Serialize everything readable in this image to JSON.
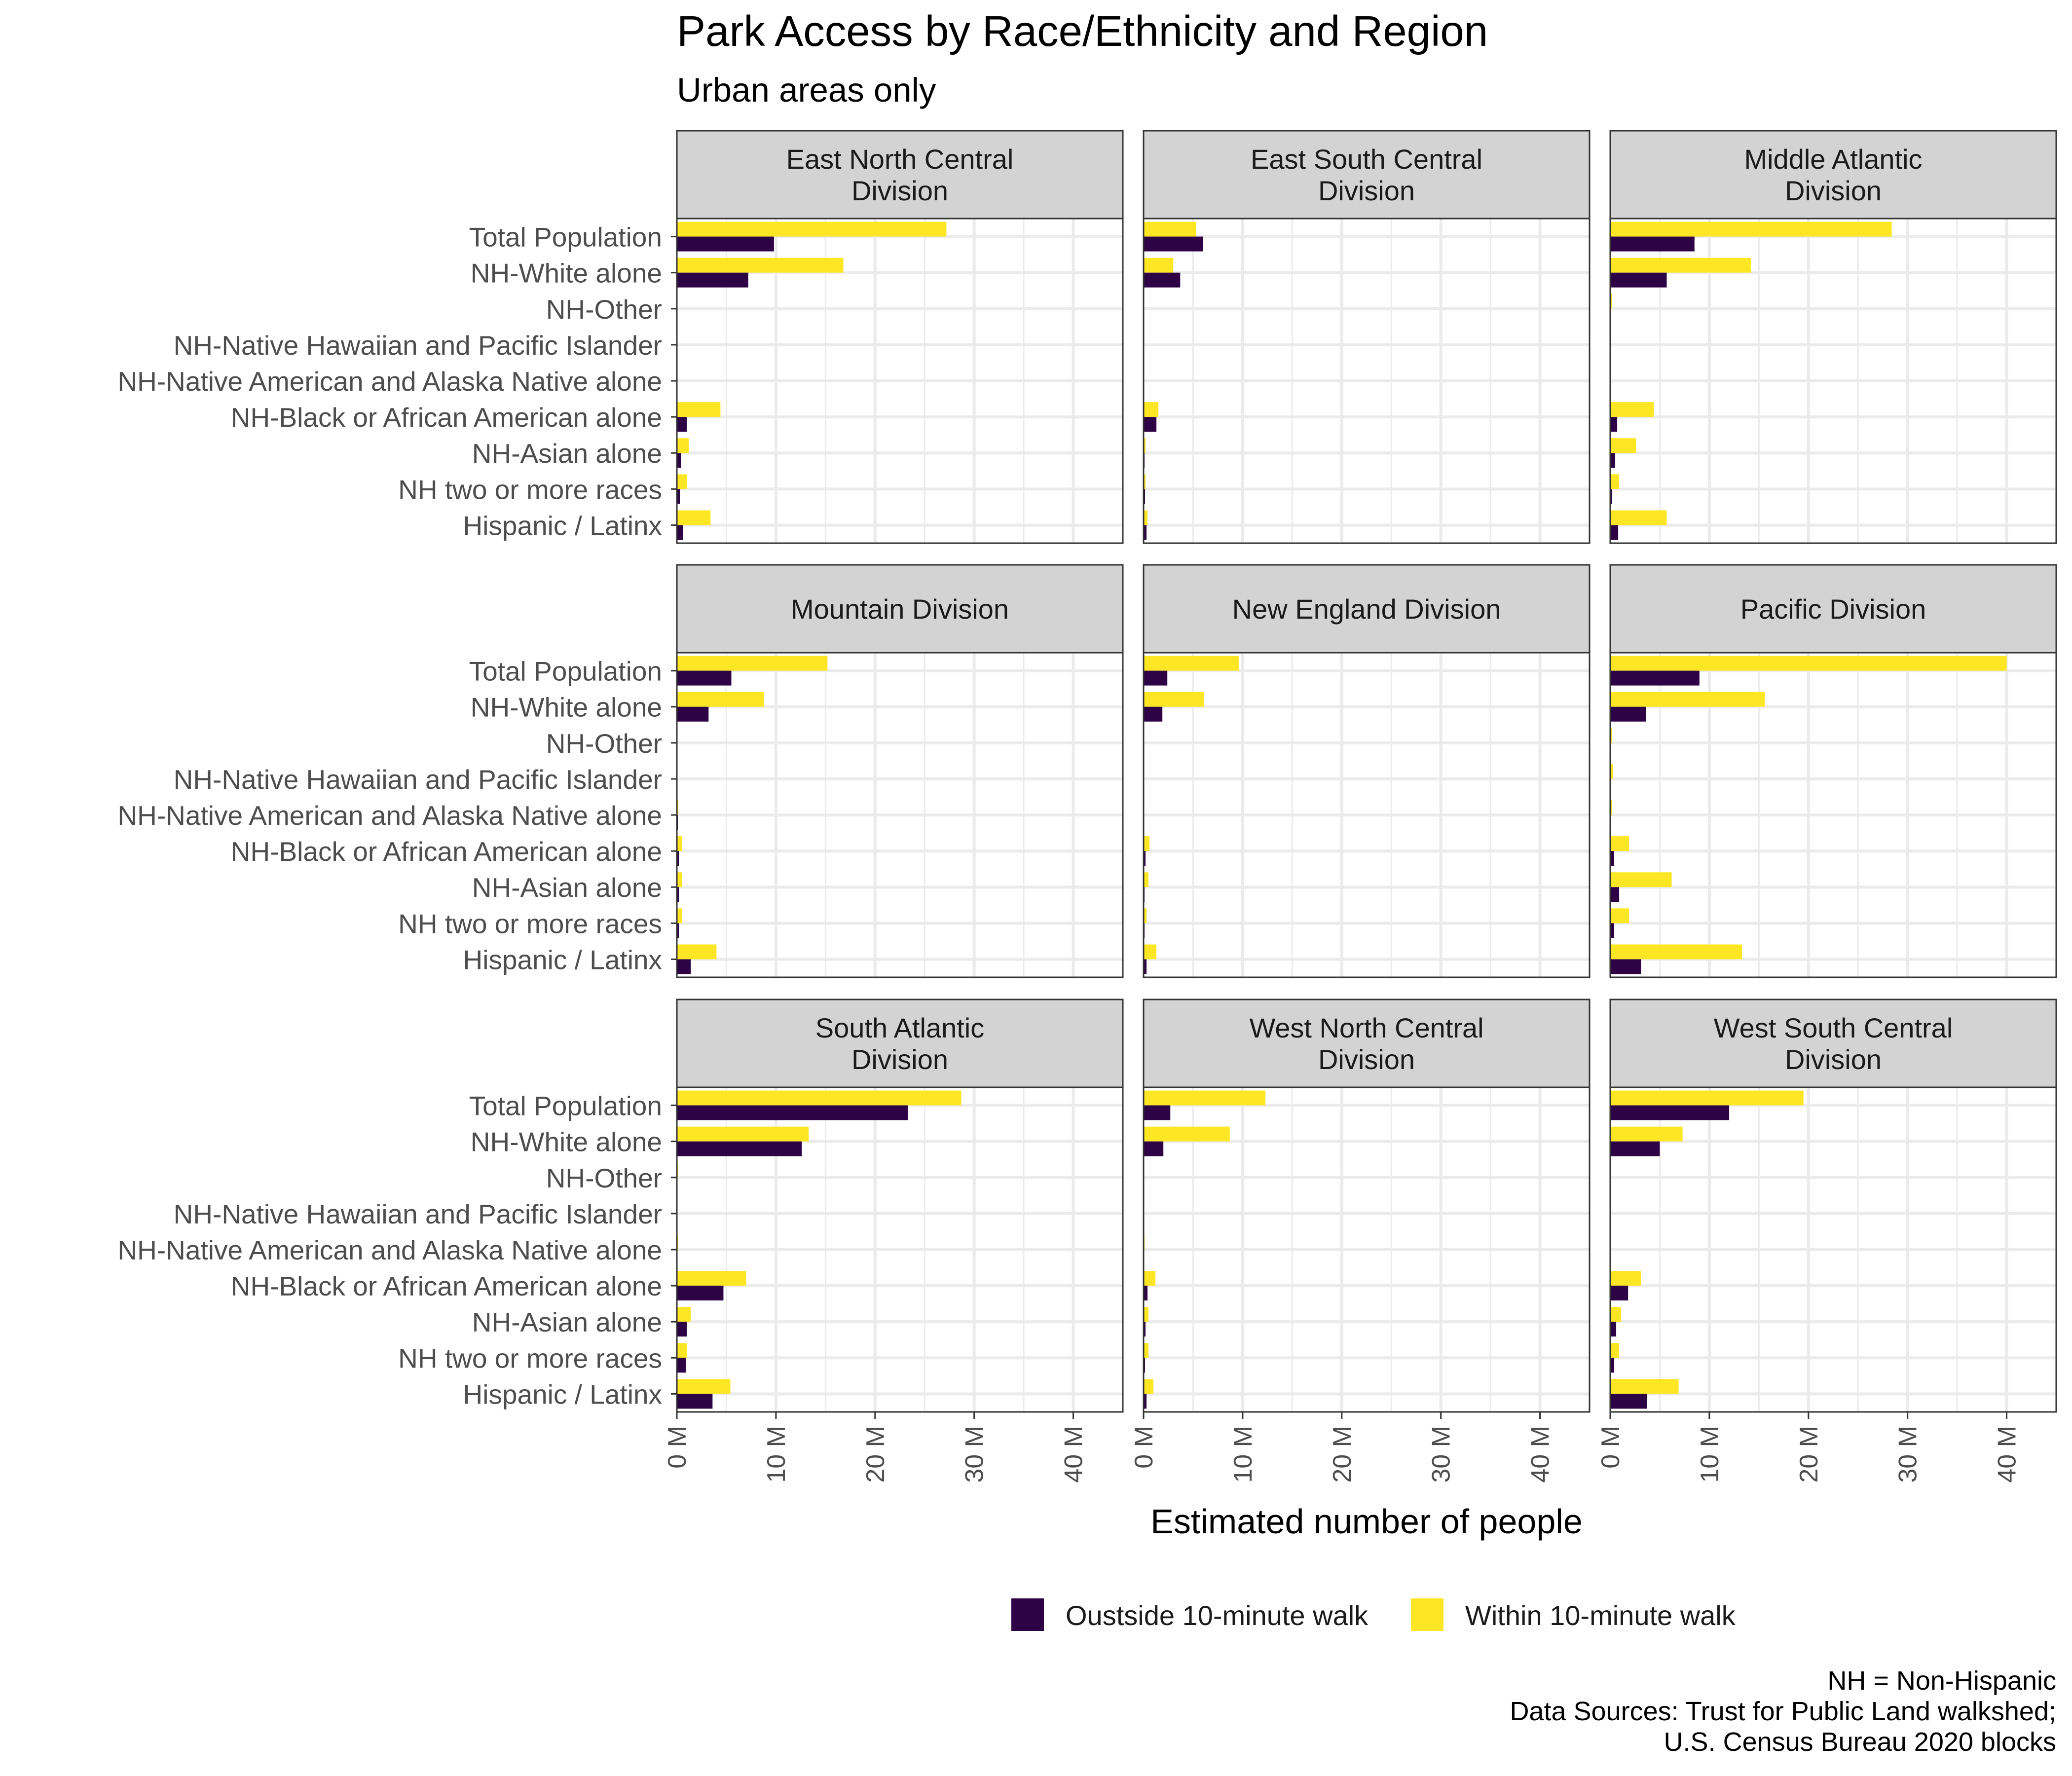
{
  "chart_data": {
    "type": "bar",
    "orientation": "horizontal",
    "faceted": true,
    "facet_layout": "3x3",
    "title": "Park Access by Race/Ethnicity and Region",
    "subtitle": "Urban areas only",
    "xlabel": "Estimated number of people",
    "ylabel": "",
    "xlim": [
      0,
      45
    ],
    "x_ticks": [
      0,
      10,
      20,
      30,
      40
    ],
    "x_tick_labels": [
      "0 M",
      "10 M",
      "20 M",
      "30 M",
      "40 M"
    ],
    "grid": true,
    "legend_position": "bottom",
    "categories": [
      "Total Population",
      "NH-White alone",
      "NH-Other",
      "NH-Native Hawaiian and Pacific Islander",
      "NH-Native American and Alaska Native alone",
      "NH-Black or African American alone",
      "NH-Asian alone",
      "NH two or more races",
      "Hispanic / Latinx"
    ],
    "series": [
      {
        "name": "Oustside 10-minute walk",
        "color": "#2d0346"
      },
      {
        "name": "Within 10-minute walk",
        "color": "#fde725"
      }
    ],
    "panels": [
      {
        "title": [
          "East North Central",
          "Division"
        ],
        "outside": [
          9.8,
          7.2,
          0,
          0,
          0.02,
          1.0,
          0.4,
          0.3,
          0.6
        ],
        "within": [
          27.2,
          16.8,
          0.05,
          0.02,
          0.05,
          4.4,
          1.2,
          1.0,
          3.4
        ]
      },
      {
        "title": [
          "East South Central",
          "Division"
        ],
        "outside": [
          6.0,
          3.7,
          0,
          0,
          0.01,
          1.3,
          0.1,
          0.15,
          0.3
        ],
        "within": [
          5.3,
          3.0,
          0.02,
          0.01,
          0.03,
          1.5,
          0.2,
          0.2,
          0.4
        ]
      },
      {
        "title": [
          "Middle Atlantic",
          "Division"
        ],
        "outside": [
          8.5,
          5.7,
          0,
          0,
          0.01,
          0.7,
          0.5,
          0.2,
          0.8
        ],
        "within": [
          28.4,
          14.2,
          0.2,
          0.02,
          0.05,
          4.4,
          2.6,
          0.9,
          5.7
        ]
      },
      {
        "title": [
          "Mountain Division"
        ],
        "outside": [
          5.5,
          3.2,
          0,
          0,
          0.1,
          0.2,
          0.2,
          0.2,
          1.4
        ],
        "within": [
          15.2,
          8.8,
          0.05,
          0.05,
          0.15,
          0.5,
          0.5,
          0.5,
          4.0
        ]
      },
      {
        "title": [
          "New England Division"
        ],
        "outside": [
          2.4,
          1.9,
          0,
          0,
          0.01,
          0.2,
          0.1,
          0.1,
          0.3
        ],
        "within": [
          9.6,
          6.1,
          0.02,
          0.01,
          0.02,
          0.6,
          0.5,
          0.3,
          1.3
        ]
      },
      {
        "title": [
          "Pacific Division"
        ],
        "outside": [
          9.0,
          3.6,
          0,
          0.05,
          0.05,
          0.4,
          0.9,
          0.4,
          3.1
        ],
        "within": [
          40.0,
          15.6,
          0.15,
          0.3,
          0.2,
          1.9,
          6.2,
          1.9,
          13.3
        ]
      },
      {
        "title": [
          "South Atlantic",
          "Division"
        ],
        "outside": [
          23.3,
          12.6,
          0,
          0,
          0.02,
          4.7,
          1.0,
          0.9,
          3.6
        ],
        "within": [
          28.7,
          13.3,
          0.1,
          0.02,
          0.1,
          7.0,
          1.4,
          1.0,
          5.4
        ]
      },
      {
        "title": [
          "West North Central",
          "Division"
        ],
        "outside": [
          2.7,
          2.0,
          0,
          0,
          0.02,
          0.4,
          0.2,
          0.15,
          0.3
        ],
        "within": [
          12.3,
          8.7,
          0.05,
          0.02,
          0.1,
          1.2,
          0.5,
          0.5,
          1.0
        ]
      },
      {
        "title": [
          "West South Central",
          "Division"
        ],
        "outside": [
          12.0,
          5.0,
          0,
          0,
          0.02,
          1.8,
          0.6,
          0.4,
          3.7
        ],
        "within": [
          19.5,
          7.3,
          0.05,
          0.01,
          0.1,
          3.1,
          1.1,
          0.9,
          6.9
        ]
      }
    ],
    "footnotes": [
      "NH = Non-Hispanic",
      "Data Sources: Trust for Public Land walkshed;",
      "U.S. Census Bureau 2020 blocks"
    ]
  }
}
